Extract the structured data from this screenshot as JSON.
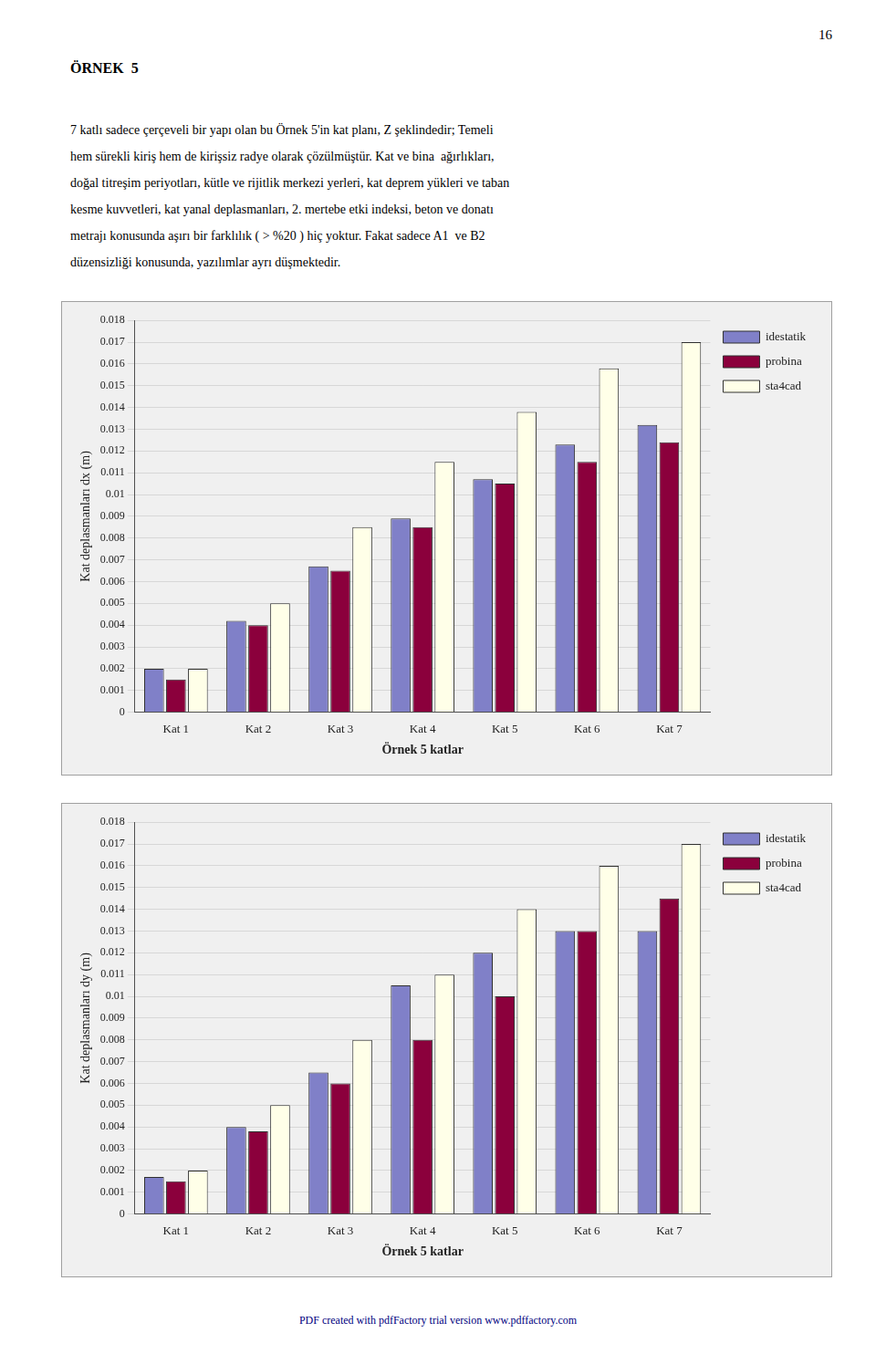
{
  "page_number": "16",
  "title": "ÖRNEK  5",
  "body_text_lines": [
    "7 katlı sadece çerçeveli bir yapı olan bu Örnek 5'in kat planı, Z şeklindedir; Temeli",
    "hem sürekli kiriş hem de kirişsiz radye olarak çözülmüştür. Kat ve bina  ağırlıkları,",
    "doğal titreşim periyotları, kütle ve rijitlik merkezi yerleri, kat deprem yükleri ve taban",
    "kesme kuvvetleri, kat yanal deplasmanları, 2. mertebe etki indeksi, beton ve donatı",
    "metrajı konusunda aşırı bir farklılık ( > %20 ) hiç yoktur. Fakat sadece A1  ve B2",
    "düzensizliği konusunda, yazılımlar ayrı düşmektedir."
  ],
  "footer": "PDF created with pdfFactory trial version www.pdffactory.com",
  "chart_data": [
    {
      "type": "bar",
      "x_label": "Örnek 5 katlar",
      "y_label": "Kat deplasmanları dx (m)",
      "categories": [
        "Kat 1",
        "Kat 2",
        "Kat 3",
        "Kat 4",
        "Kat 5",
        "Kat 6",
        "Kat 7"
      ],
      "series": [
        {
          "name": "idestatik",
          "color": "#8080C8",
          "values": [
            0.002,
            0.0042,
            0.0067,
            0.0089,
            0.0107,
            0.0123,
            0.0132
          ]
        },
        {
          "name": "probina",
          "color": "#8B003C",
          "values": [
            0.0015,
            0.004,
            0.0065,
            0.0085,
            0.0105,
            0.0115,
            0.0124
          ]
        },
        {
          "name": "sta4cad",
          "color": "#FFFFE8",
          "values": [
            0.002,
            0.005,
            0.0085,
            0.0115,
            0.0138,
            0.0158,
            0.017
          ]
        }
      ],
      "ylim": [
        0,
        0.018
      ],
      "yticks": [
        0,
        0.001,
        0.002,
        0.003,
        0.004,
        0.005,
        0.006,
        0.007,
        0.008,
        0.009,
        0.01,
        0.011,
        0.012,
        0.013,
        0.014,
        0.015,
        0.016,
        0.017,
        0.018
      ],
      "grid": true,
      "legend": "right"
    },
    {
      "type": "bar",
      "x_label": "Örnek 5 katlar",
      "y_label": "Kat deplasmanları dy (m)",
      "categories": [
        "Kat 1",
        "Kat 2",
        "Kat 3",
        "Kat 4",
        "Kat 5",
        "Kat 6",
        "Kat 7"
      ],
      "series": [
        {
          "name": "idestatik",
          "color": "#8080C8",
          "values": [
            0.0017,
            0.004,
            0.0065,
            0.0105,
            0.012,
            0.013,
            0.013
          ]
        },
        {
          "name": "probina",
          "color": "#8B003C",
          "values": [
            0.0015,
            0.0038,
            0.006,
            0.008,
            0.01,
            0.013,
            0.0145
          ]
        },
        {
          "name": "sta4cad",
          "color": "#FFFFE8",
          "values": [
            0.002,
            0.005,
            0.008,
            0.011,
            0.014,
            0.016,
            0.017
          ]
        }
      ],
      "ylim": [
        0,
        0.018
      ],
      "yticks": [
        0,
        0.001,
        0.002,
        0.003,
        0.004,
        0.005,
        0.006,
        0.007,
        0.008,
        0.009,
        0.01,
        0.011,
        0.012,
        0.013,
        0.014,
        0.015,
        0.016,
        0.017,
        0.018
      ],
      "grid": true,
      "legend": "right"
    }
  ]
}
